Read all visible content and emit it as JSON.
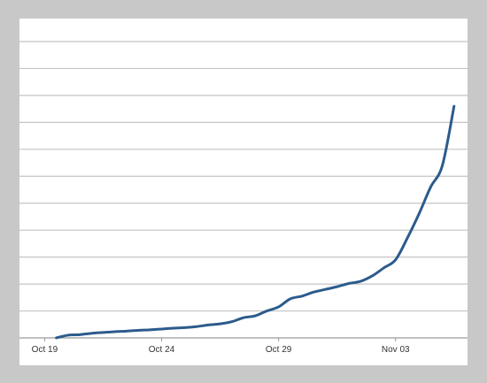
{
  "chart_data": {
    "type": "line",
    "title": "",
    "xlabel": "",
    "ylabel": "",
    "x_axis": {
      "kind": "date",
      "range": [
        "2011-10-18",
        "2011-11-06"
      ],
      "ticks": [
        {
          "date": "2011-10-19",
          "label": "Oct 19"
        },
        {
          "date": "2011-10-24",
          "label": "Oct 24"
        },
        {
          "date": "2011-10-29",
          "label": "Oct 29"
        },
        {
          "date": "2011-11-03",
          "label": "Nov 03"
        }
      ]
    },
    "y_axis": {
      "range": [
        0,
        11
      ],
      "gridlines": [
        1,
        2,
        3,
        4,
        5,
        6,
        7,
        8,
        9,
        10,
        11
      ],
      "tick_labels_shown": false
    },
    "grid": "horizontal",
    "legend": "none",
    "series": [
      {
        "color": "#2c5b8c",
        "points": [
          [
            "2011-10-19 12:00",
            0.0
          ],
          [
            "2011-10-20 00:00",
            0.1
          ],
          [
            "2011-10-20 12:00",
            0.12
          ],
          [
            "2011-10-21 00:00",
            0.17
          ],
          [
            "2011-10-21 12:00",
            0.2
          ],
          [
            "2011-10-22 00:00",
            0.23
          ],
          [
            "2011-10-22 12:00",
            0.25
          ],
          [
            "2011-10-23 00:00",
            0.28
          ],
          [
            "2011-10-23 12:00",
            0.3
          ],
          [
            "2011-10-24 00:00",
            0.33
          ],
          [
            "2011-10-24 12:00",
            0.36
          ],
          [
            "2011-10-25 00:00",
            0.38
          ],
          [
            "2011-10-25 12:00",
            0.42
          ],
          [
            "2011-10-26 00:00",
            0.48
          ],
          [
            "2011-10-26 12:00",
            0.52
          ],
          [
            "2011-10-27 00:00",
            0.6
          ],
          [
            "2011-10-27 12:00",
            0.75
          ],
          [
            "2011-10-28 00:00",
            0.82
          ],
          [
            "2011-10-28 12:00",
            1.0
          ],
          [
            "2011-10-29 00:00",
            1.15
          ],
          [
            "2011-10-29 12:00",
            1.45
          ],
          [
            "2011-10-30 00:00",
            1.55
          ],
          [
            "2011-10-30 12:00",
            1.7
          ],
          [
            "2011-10-31 00:00",
            1.8
          ],
          [
            "2011-10-31 12:00",
            1.9
          ],
          [
            "2011-11-01 00:00",
            2.02
          ],
          [
            "2011-11-01 12:00",
            2.1
          ],
          [
            "2011-11-02 00:00",
            2.3
          ],
          [
            "2011-11-02 12:00",
            2.6
          ],
          [
            "2011-11-03 00:00",
            2.9
          ],
          [
            "2011-11-03 12:00",
            3.7
          ],
          [
            "2011-11-04 00:00",
            4.6
          ],
          [
            "2011-11-04 12:00",
            5.6
          ],
          [
            "2011-11-05 00:00",
            6.4
          ],
          [
            "2011-11-05 12:00",
            8.6
          ]
        ]
      }
    ]
  }
}
